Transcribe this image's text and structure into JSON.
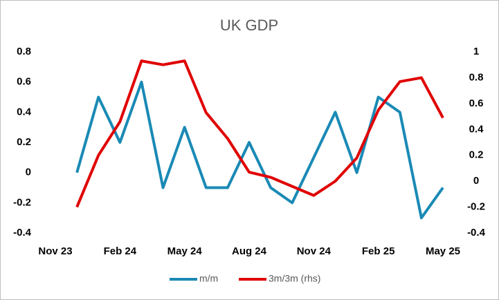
{
  "chart_data": {
    "type": "line",
    "title": "UK GDP",
    "categories": [
      "Nov 23",
      null,
      null,
      "Feb 24",
      null,
      null,
      "May 24",
      null,
      null,
      "Aug 24",
      null,
      null,
      "Nov 24",
      null,
      null,
      "Feb 25",
      null,
      null,
      "May 25"
    ],
    "series": [
      {
        "name": "m/m",
        "color": "#1a8ab5",
        "values": [
          null,
          0,
          0.5,
          0.2,
          0.6,
          -0.1,
          0.3,
          -0.1,
          -0.1,
          0.2,
          -0.1,
          -0.2,
          0.1,
          0.4,
          0,
          0.5,
          0.4,
          -0.3,
          -0.1
        ]
      },
      {
        "name": "3m/3m (rhs)",
        "color": "#e00000",
        "axis": "y2",
        "values": [
          null,
          -0.2,
          0.2,
          0.46,
          0.93,
          0.9,
          0.93,
          0.53,
          0.33,
          0.07,
          0.03,
          -0.04,
          -0.11,
          0,
          0.18,
          0.55,
          0.77,
          0.8,
          0.49
        ]
      }
    ],
    "ylim": [
      -0.4,
      0.8
    ],
    "yticks": [
      -0.4,
      -0.2,
      0,
      0.2,
      0.4,
      0.6,
      0.8
    ],
    "y2lim": [
      -0.4,
      1
    ],
    "y2ticks": [
      -0.4,
      -0.2,
      0,
      0.2,
      0.4,
      0.6,
      0.8,
      1
    ],
    "grid": false,
    "legend": "bottom"
  }
}
